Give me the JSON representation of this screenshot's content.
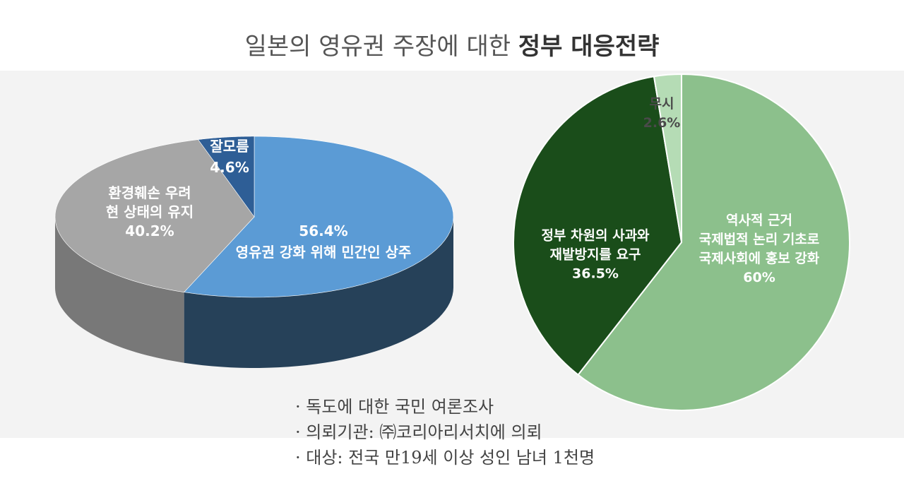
{
  "title": {
    "normal": "일본의 영유권 주장에 대한",
    "bold": "정부 대응전략"
  },
  "chart_data": [
    {
      "type": "pie",
      "variant": "3d",
      "slices": [
        {
          "label": [
            "56.4%",
            "영유권 강화 위해 민간인 상주"
          ],
          "value": 56.4,
          "color": "#5b9bd5"
        },
        {
          "label": [
            "환경훼손 우려",
            "현 상태의 유지",
            "40.2%"
          ],
          "value": 40.2,
          "color": "#a6a6a6"
        },
        {
          "label": [
            "잘모름",
            "4.6%"
          ],
          "value": 4.6,
          "color": "#2e5e96"
        }
      ]
    },
    {
      "type": "pie",
      "slices": [
        {
          "label": [
            "역사적 근거",
            "국제법적 논리 기초로",
            "국제사회에 홍보 강화",
            "60%"
          ],
          "value": 60,
          "color": "#8cc08c"
        },
        {
          "label": [
            "정부 차원의 사과와",
            "재발방지를 요구",
            "36.5%"
          ],
          "value": 36.5,
          "color": "#1a4d1a"
        },
        {
          "label": [
            "무시",
            "2.6%"
          ],
          "value": 2.6,
          "color": "#b5dcb5"
        }
      ]
    }
  ],
  "notes": [
    "· 독도에 대한 국민 여론조사",
    "· 의뢰기관: ㈜코리아리서치에 의뢰",
    "· 대상: 전국 만19세 이상 성인 남녀 1천명"
  ]
}
